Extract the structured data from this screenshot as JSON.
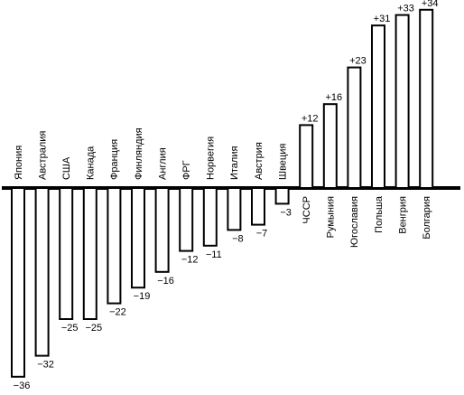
{
  "chart_data": {
    "type": "bar",
    "orientation": "vertical",
    "title": "",
    "xlabel": "",
    "ylabel": "",
    "grid": false,
    "legend": "none",
    "bar_fill": "#ffffff",
    "bar_stroke": "#000000",
    "categories": [
      "Япония",
      "Австралия",
      "США",
      "Канада",
      "Франция",
      "Финляндия",
      "Англия",
      "ФРГ",
      "Норвегия",
      "Италия",
      "Австрия",
      "Швеция",
      "ЧССР",
      "Румыния",
      "Югославия",
      "Польша",
      "Венгрия",
      "Болгария"
    ],
    "values": [
      -36,
      -32,
      -25,
      -25,
      -22,
      -19,
      -16,
      -12,
      -11,
      -8,
      -7,
      -3,
      12,
      16,
      23,
      31,
      33,
      34
    ],
    "value_labels": [
      "−36",
      "−32",
      "−25",
      "−25",
      "−22",
      "−19",
      "−16",
      "−12",
      "−11",
      "−8",
      "−7",
      "−3",
      "+12",
      "+16",
      "+23",
      "+31",
      "+33",
      "+34"
    ],
    "ylim": [
      -36,
      34
    ]
  }
}
